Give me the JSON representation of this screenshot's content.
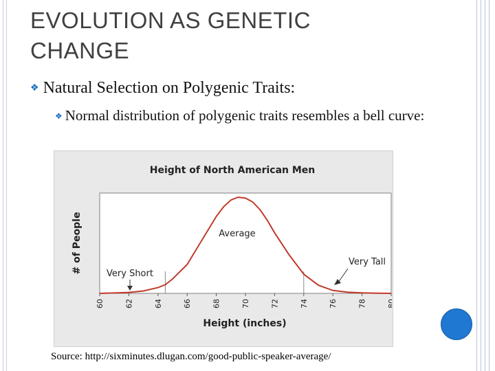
{
  "slide": {
    "title": "EVOLUTION AS GENETIC CHANGE",
    "bullet_main": "Natural Selection on Polygenic Traits:",
    "bullet_sub": "Normal distribution of polygenic traits resembles a bell curve:",
    "source": "Source: http://sixminutes.dlugan.com/good-public-speaker-average/",
    "accent_color": "#1f78d1"
  },
  "chart_data": {
    "type": "line",
    "title": "Height of North American Men",
    "xlabel": "Height (inches)",
    "ylabel": "# of People",
    "xlim": [
      60,
      80
    ],
    "ylim": [
      0,
      1
    ],
    "x_ticks": [
      "60",
      "62",
      "64",
      "66",
      "68",
      "70",
      "72",
      "74",
      "76",
      "78",
      "80"
    ],
    "x": [
      60,
      61,
      62,
      63,
      64,
      64.5,
      65,
      66,
      67,
      68,
      68.5,
      69,
      69.5,
      70,
      70.5,
      71,
      71.5,
      72,
      73,
      74,
      75,
      76,
      77,
      78,
      79,
      80
    ],
    "y": [
      0,
      0.004,
      0.01,
      0.025,
      0.06,
      0.09,
      0.15,
      0.3,
      0.55,
      0.8,
      0.9,
      0.97,
      1.0,
      0.99,
      0.95,
      0.87,
      0.76,
      0.63,
      0.4,
      0.2,
      0.085,
      0.03,
      0.012,
      0.005,
      0.002,
      0
    ],
    "reference_lines": [
      64.5,
      74
    ],
    "annotations": {
      "average": "Average",
      "very_short": "Very Short",
      "very_tall": "Very Tall"
    },
    "line_color": "#c0392b",
    "grid": false
  }
}
